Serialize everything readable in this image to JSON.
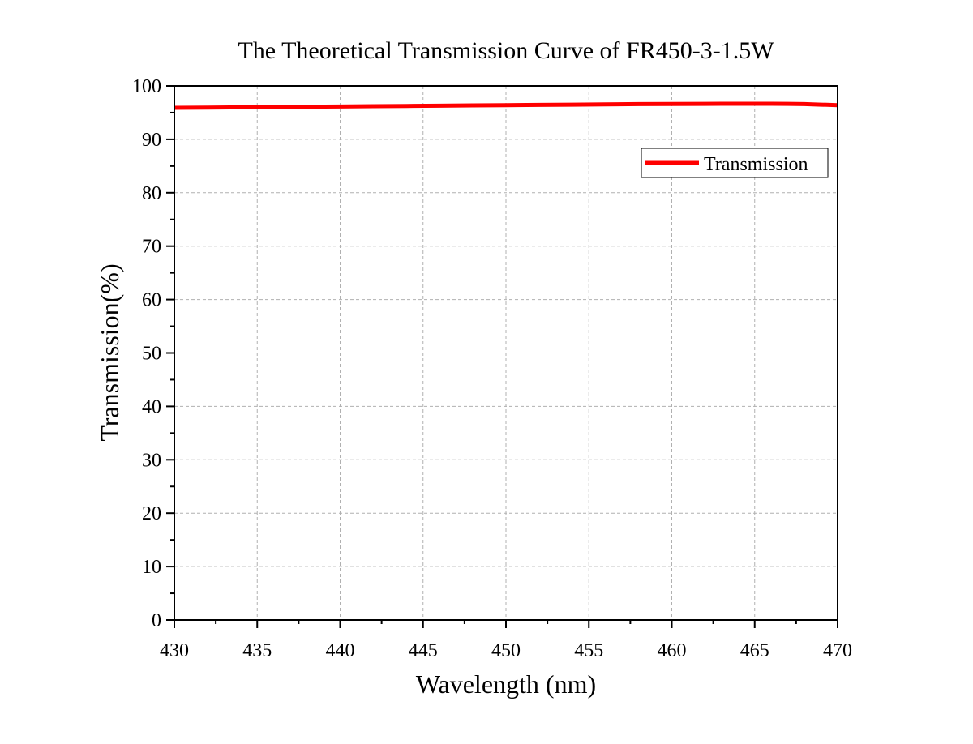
{
  "chart_data": {
    "type": "line",
    "title": "The Theoretical Transmission Curve of FR450-3-1.5W",
    "xlabel": "Wavelength (nm)",
    "ylabel": "Transmission(%)",
    "xlim": [
      430,
      470
    ],
    "ylim": [
      0,
      100
    ],
    "xticks": [
      430,
      435,
      440,
      445,
      450,
      455,
      460,
      465,
      470
    ],
    "yticks": [
      0,
      10,
      20,
      30,
      40,
      50,
      60,
      70,
      80,
      90,
      100
    ],
    "grid": true,
    "legend_position": "top-right",
    "series": [
      {
        "name": "Transmission",
        "color": "#ff0000",
        "x": [
          430,
          432,
          434,
          436,
          438,
          440,
          442,
          444,
          446,
          448,
          450,
          452,
          454,
          456,
          458,
          460,
          462,
          464,
          466,
          467,
          468,
          469,
          470
        ],
        "y": [
          95.9,
          95.95,
          96.0,
          96.05,
          96.1,
          96.15,
          96.2,
          96.25,
          96.3,
          96.35,
          96.4,
          96.45,
          96.5,
          96.55,
          96.6,
          96.62,
          96.65,
          96.66,
          96.66,
          96.64,
          96.6,
          96.5,
          96.4
        ]
      }
    ]
  }
}
